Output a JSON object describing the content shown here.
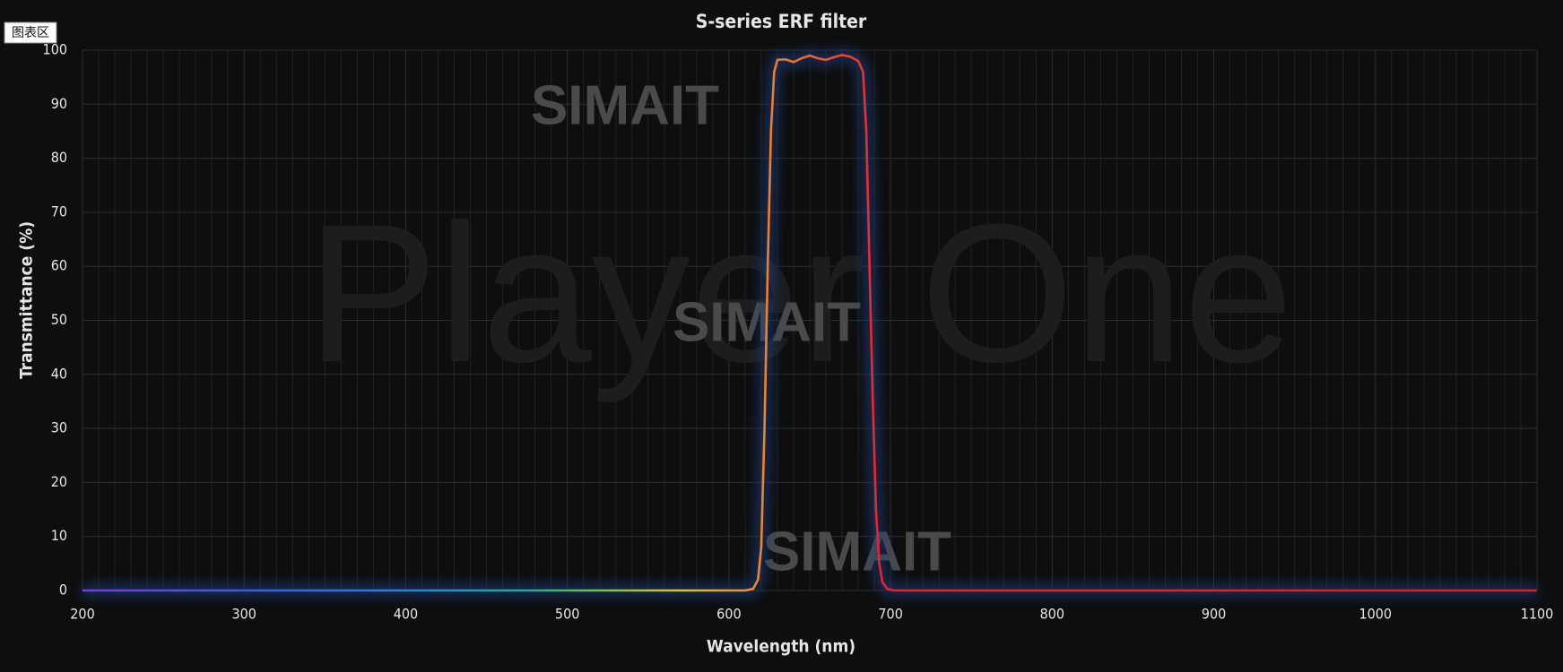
{
  "chart_data": {
    "type": "line",
    "title": "S-series ERF filter",
    "corner_label": "图表区",
    "watermarks": [
      "Player One",
      "SIMAIT",
      "SIMAIT",
      "SIMAIT"
    ],
    "x_label": "Wavelength (nm)",
    "y_label": "Transmittance (%)",
    "x": [
      200,
      400,
      600,
      610,
      615,
      618,
      620,
      622,
      624,
      626,
      628,
      630,
      635,
      640,
      645,
      650,
      655,
      660,
      665,
      670,
      675,
      680,
      683,
      685,
      687,
      689,
      691,
      693,
      695,
      698,
      702,
      800,
      1100
    ],
    "series": [
      {
        "color_stops": [
          {
            "x": 200,
            "color": "#7a3cd6"
          },
          {
            "x": 300,
            "color": "#3f5bd8"
          },
          {
            "x": 400,
            "color": "#2f7fd6"
          },
          {
            "x": 480,
            "color": "#2fa88a"
          },
          {
            "x": 520,
            "color": "#7bc43a"
          },
          {
            "x": 570,
            "color": "#e0c030"
          },
          {
            "x": 615,
            "color": "#f08a28"
          },
          {
            "x": 655,
            "color": "#f05a2a"
          },
          {
            "x": 695,
            "color": "#e8202a"
          },
          {
            "x": 1100,
            "color": "#e01b24"
          }
        ],
        "glow_color": "#1d3f86",
        "values": [
          0,
          0,
          0,
          0,
          0.3,
          2,
          8,
          30,
          60,
          85,
          96,
          98.2,
          98.3,
          97.8,
          98.5,
          99,
          98.5,
          98.2,
          98.7,
          99.1,
          98.8,
          98,
          96,
          85,
          60,
          35,
          15,
          5,
          1.5,
          0.3,
          0,
          0,
          0
        ]
      }
    ],
    "xlim": [
      200,
      1100
    ],
    "ylim": [
      0,
      100
    ],
    "xticks": [
      200,
      300,
      400,
      500,
      600,
      700,
      800,
      900,
      1000,
      1100
    ],
    "x_minor_ticks": [
      210,
      220,
      230,
      240,
      250,
      260,
      270,
      280,
      290,
      310,
      320,
      330,
      340,
      350,
      360,
      370,
      380,
      390,
      410,
      420,
      430,
      440,
      450,
      460,
      470,
      480,
      490,
      510,
      520,
      530,
      540,
      550,
      560,
      570,
      580,
      590,
      610,
      620,
      630,
      640,
      650,
      660,
      670,
      680,
      690,
      710,
      720,
      730,
      740,
      750,
      760,
      770,
      780,
      790,
      810,
      820,
      830,
      840,
      850,
      860,
      870,
      880,
      890,
      910,
      920,
      930,
      940,
      950,
      960,
      970,
      980,
      990,
      1010,
      1020,
      1030,
      1040,
      1050,
      1060,
      1070,
      1080,
      1090
    ],
    "yticks": [
      0,
      10,
      20,
      30,
      40,
      50,
      60,
      70,
      80,
      90,
      100
    ],
    "grid": true
  }
}
